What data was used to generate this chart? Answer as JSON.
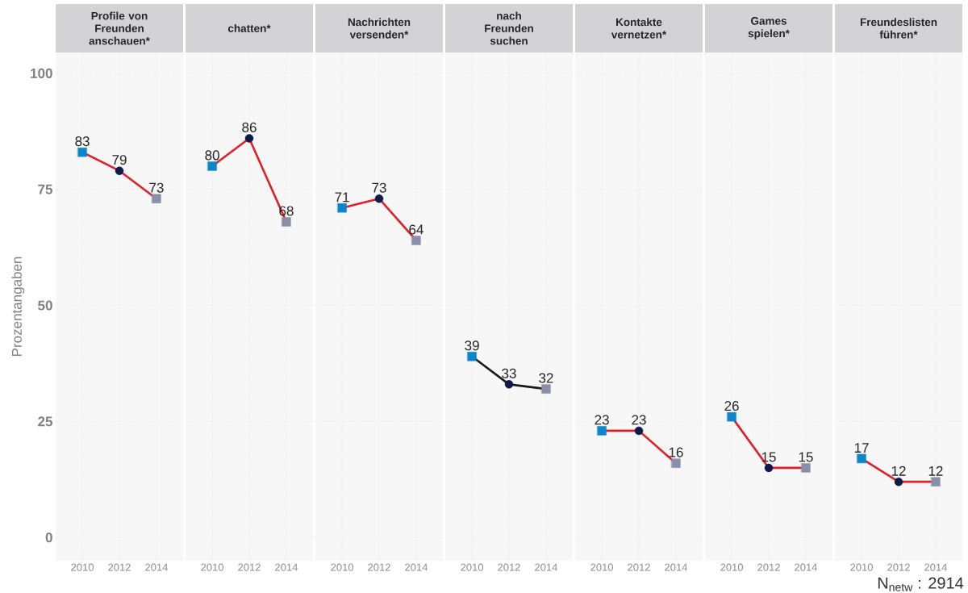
{
  "chart_data": [
    {
      "type": "line",
      "title": "Profile von Freunden anschauen*",
      "ylabel": "Prozentangaben",
      "categories": [
        "2010",
        "2012",
        "2014"
      ],
      "ylim": [
        -5,
        104.5
      ],
      "yticks": [
        0,
        25,
        50,
        75,
        100
      ],
      "grid": true,
      "series": [
        {
          "color": "#e31e26",
          "marker": "none",
          "values": [
            83,
            79,
            73
          ],
          "value_labels": [
            "83",
            "79",
            "73"
          ]
        },
        {
          "type": "scatter",
          "color": "#0a86c9",
          "marker": "square",
          "values": [
            83,
            null,
            null
          ]
        },
        {
          "type": "scatter",
          "color": "#0d1a4a",
          "marker": "circle",
          "values": [
            null,
            79,
            null
          ]
        },
        {
          "type": "scatter",
          "color": "#8a8fa8",
          "marker": "square",
          "values": [
            null,
            null,
            73
          ]
        }
      ]
    },
    {
      "type": "line",
      "title": "chatten*",
      "categories": [
        "2010",
        "2012",
        "2014"
      ],
      "ylim": [
        -5,
        104.5
      ],
      "yticks": [
        0,
        25,
        50,
        75,
        100
      ],
      "tick_labels": "x",
      "grid": true,
      "series": [
        {
          "color": "#e31e26",
          "marker": "none",
          "values": [
            80,
            86,
            68
          ],
          "value_labels": [
            "80",
            "86",
            "68"
          ]
        },
        {
          "type": "scatter",
          "color": "#0a86c9",
          "marker": "square",
          "values": [
            80,
            null,
            null
          ]
        },
        {
          "type": "scatter",
          "color": "#0d1a4a",
          "marker": "circle",
          "values": [
            null,
            86,
            null
          ]
        },
        {
          "type": "scatter",
          "color": "#8a8fa8",
          "marker": "square",
          "values": [
            null,
            null,
            68
          ]
        }
      ]
    },
    {
      "type": "line",
      "title": "Nachrichten versenden*",
      "categories": [
        "2010",
        "2012",
        "2014"
      ],
      "ylim": [
        -5,
        104.5
      ],
      "yticks": [
        0,
        25,
        50,
        75,
        100
      ],
      "tick_labels": "x",
      "grid": true,
      "series": [
        {
          "color": "#e31e26",
          "marker": "none",
          "values": [
            71,
            73,
            64
          ],
          "value_labels": [
            "71",
            "73",
            "64"
          ]
        },
        {
          "type": "scatter",
          "color": "#0a86c9",
          "marker": "square",
          "values": [
            71,
            null,
            null
          ]
        },
        {
          "type": "scatter",
          "color": "#0d1a4a",
          "marker": "circle",
          "values": [
            null,
            73,
            null
          ]
        },
        {
          "type": "scatter",
          "color": "#8a8fa8",
          "marker": "square",
          "values": [
            null,
            null,
            64
          ]
        }
      ]
    },
    {
      "type": "line",
      "title": "nach Freunden suchen",
      "categories": [
        "2010",
        "2012",
        "2014"
      ],
      "ylim": [
        -5,
        104.5
      ],
      "yticks": [
        0,
        25,
        50,
        75,
        100
      ],
      "tick_labels": "x",
      "grid": true,
      "series": [
        {
          "color": "#1a1a1a",
          "marker": "none",
          "values": [
            39,
            33,
            32
          ],
          "value_labels": [
            "39",
            "33",
            "32"
          ]
        },
        {
          "type": "scatter",
          "color": "#0a86c9",
          "marker": "square",
          "values": [
            39,
            null,
            null
          ]
        },
        {
          "type": "scatter",
          "color": "#0d1a4a",
          "marker": "circle",
          "values": [
            null,
            33,
            null
          ]
        },
        {
          "type": "scatter",
          "color": "#8a8fa8",
          "marker": "square",
          "values": [
            null,
            null,
            32
          ]
        }
      ]
    },
    {
      "type": "line",
      "title": "Kontakte vernetzen*",
      "categories": [
        "2010",
        "2012",
        "2014"
      ],
      "ylim": [
        -5,
        104.5
      ],
      "yticks": [
        0,
        25,
        50,
        75,
        100
      ],
      "tick_labels": "x",
      "grid": true,
      "series": [
        {
          "color": "#e31e26",
          "marker": "none",
          "values": [
            23,
            23,
            16
          ],
          "value_labels": [
            "23",
            "23",
            "16"
          ]
        },
        {
          "type": "scatter",
          "color": "#0a86c9",
          "marker": "square",
          "values": [
            23,
            null,
            null
          ]
        },
        {
          "type": "scatter",
          "color": "#0d1a4a",
          "marker": "circle",
          "values": [
            null,
            23,
            null
          ]
        },
        {
          "type": "scatter",
          "color": "#8a8fa8",
          "marker": "square",
          "values": [
            null,
            null,
            16
          ]
        }
      ]
    },
    {
      "type": "line",
      "title": "Games spielen*",
      "categories": [
        "2010",
        "2012",
        "2014"
      ],
      "ylim": [
        -5,
        104.5
      ],
      "yticks": [
        0,
        25,
        50,
        75,
        100
      ],
      "tick_labels": "x",
      "grid": true,
      "series": [
        {
          "color": "#e31e26",
          "marker": "none",
          "values": [
            26,
            15,
            15
          ],
          "value_labels": [
            "26",
            "15",
            "15"
          ]
        },
        {
          "type": "scatter",
          "color": "#0a86c9",
          "marker": "square",
          "values": [
            26,
            null,
            null
          ]
        },
        {
          "type": "scatter",
          "color": "#0d1a4a",
          "marker": "circle",
          "values": [
            null,
            15,
            null
          ]
        },
        {
          "type": "scatter",
          "color": "#8a8fa8",
          "marker": "square",
          "values": [
            null,
            null,
            15
          ]
        }
      ]
    },
    {
      "type": "line",
      "title": "Freundeslisten führen*",
      "categories": [
        "2010",
        "2012",
        "2014"
      ],
      "ylim": [
        -5,
        104.5
      ],
      "yticks": [
        0,
        25,
        50,
        75,
        100
      ],
      "tick_labels": "x",
      "grid": true,
      "annotations": [
        "N$_{netw}$ : 2914"
      ],
      "series": [
        {
          "color": "#e31e26",
          "marker": "none",
          "values": [
            17,
            12,
            12
          ],
          "value_labels": [
            "17",
            "12",
            "12"
          ]
        },
        {
          "type": "scatter",
          "color": "#0a86c9",
          "marker": "square",
          "values": [
            17,
            null,
            null
          ]
        },
        {
          "type": "scatter",
          "color": "#0d1a4a",
          "marker": "circle",
          "values": [
            null,
            12,
            null
          ]
        },
        {
          "type": "scatter",
          "color": "#8a8fa8",
          "marker": "square",
          "values": [
            null,
            null,
            12
          ]
        }
      ]
    }
  ]
}
